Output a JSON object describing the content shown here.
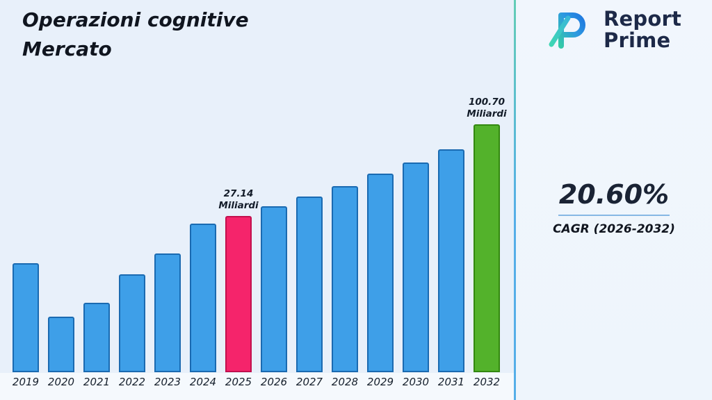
{
  "header": {
    "title_line1": "Operazioni cognitive",
    "title_line2": "Mercato"
  },
  "logo": {
    "name_line1": "Report",
    "name_line2": "Prime"
  },
  "stats": {
    "cagr_value": "20.60%",
    "cagr_label": "CAGR (2026-2032)"
  },
  "chart_data": {
    "type": "bar",
    "title": "Operazioni cognitive Mercato",
    "unit": "Miliardi",
    "legend": "none",
    "gridlines": false,
    "categories": [
      "2019",
      "2020",
      "2021",
      "2022",
      "2023",
      "2024",
      "2025",
      "2026",
      "2027",
      "2028",
      "2029",
      "2030",
      "2031",
      "2032"
    ],
    "values_relative_pct": [
      44,
      22.5,
      28,
      39.5,
      48,
      60,
      63,
      67,
      71,
      75,
      80,
      84.5,
      90,
      100
    ],
    "labeled_points": [
      {
        "category": "2025",
        "value": 27.14,
        "label": "27.14\nMiliardi"
      },
      {
        "category": "2032",
        "value": 100.7,
        "label": "100.70\nMiliardi"
      }
    ],
    "colors": {
      "blue": "#3E9FE8",
      "pink": "#F5246B",
      "green": "#53B22B"
    },
    "border_colors": {
      "blue": "#1A6AB1",
      "pink": "#C2104E",
      "green": "#33880F"
    },
    "bars": [
      {
        "year": "2019",
        "value": 44,
        "color": "blue"
      },
      {
        "year": "2020",
        "value": 22.5,
        "color": "blue"
      },
      {
        "year": "2021",
        "value": 28,
        "color": "blue"
      },
      {
        "year": "2022",
        "value": 39.5,
        "color": "blue"
      },
      {
        "year": "2023",
        "value": 48,
        "color": "blue"
      },
      {
        "year": "2024",
        "value": 60,
        "color": "blue"
      },
      {
        "year": "2025",
        "value": 63,
        "color": "pink",
        "annotation": "27.14\nMiliardi"
      },
      {
        "year": "2026",
        "value": 67,
        "color": "blue"
      },
      {
        "year": "2027",
        "value": 71,
        "color": "blue"
      },
      {
        "year": "2028",
        "value": 75,
        "color": "blue"
      },
      {
        "year": "2029",
        "value": 80,
        "color": "blue"
      },
      {
        "year": "2030",
        "value": 84.5,
        "color": "blue"
      },
      {
        "year": "2031",
        "value": 90,
        "color": "blue"
      },
      {
        "year": "2032",
        "value": 100,
        "color": "green",
        "annotation": "100.70\nMiliardi"
      }
    ]
  }
}
